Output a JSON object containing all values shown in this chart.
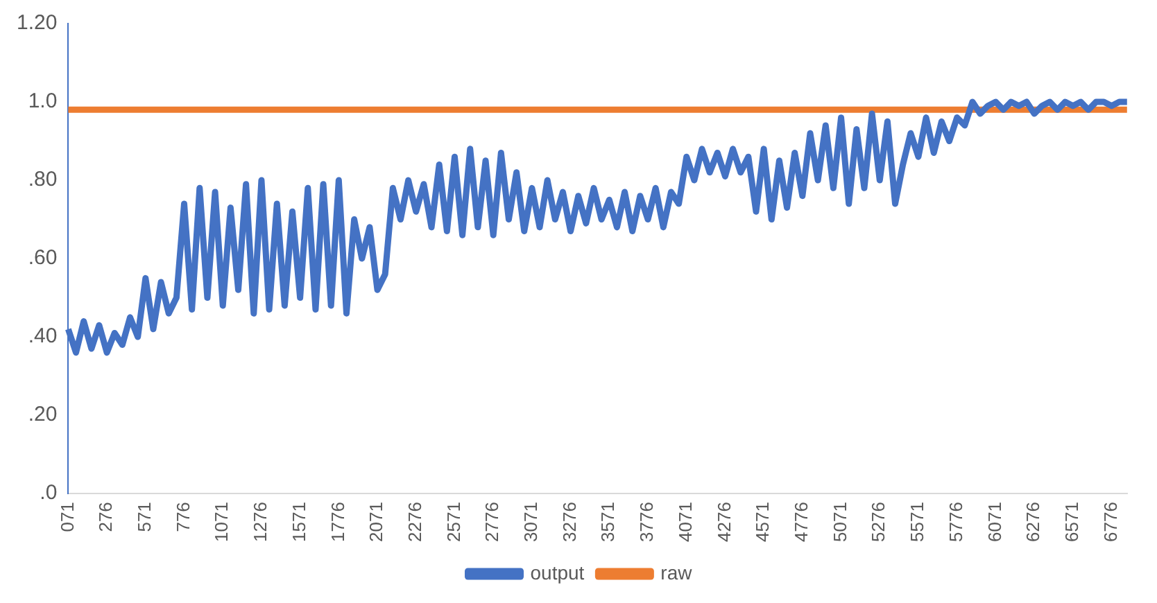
{
  "chart_data": {
    "type": "line",
    "categories": [
      "071",
      null,
      null,
      null,
      null,
      "276",
      null,
      null,
      null,
      null,
      "571",
      null,
      null,
      null,
      null,
      "776",
      null,
      null,
      null,
      null,
      "1071",
      null,
      null,
      null,
      null,
      "1276",
      null,
      null,
      null,
      null,
      "1571",
      null,
      null,
      null,
      null,
      "1776",
      null,
      null,
      null,
      null,
      "2071",
      null,
      null,
      null,
      null,
      "2276",
      null,
      null,
      null,
      null,
      "2571",
      null,
      null,
      null,
      null,
      "2776",
      null,
      null,
      null,
      null,
      "3071",
      null,
      null,
      null,
      null,
      "3276",
      null,
      null,
      null,
      null,
      "3571",
      null,
      null,
      null,
      null,
      "3776",
      null,
      null,
      null,
      null,
      "4071",
      null,
      null,
      null,
      null,
      "4276",
      null,
      null,
      null,
      null,
      "4571",
      null,
      null,
      null,
      null,
      "4776",
      null,
      null,
      null,
      null,
      "5071",
      null,
      null,
      null,
      null,
      "5276",
      null,
      null,
      null,
      null,
      "5571",
      null,
      null,
      null,
      null,
      "5776",
      null,
      null,
      null,
      null,
      "6071",
      null,
      null,
      null,
      null,
      "6276",
      null,
      null,
      null,
      null,
      "6571",
      null,
      null,
      null,
      null,
      "6776",
      null,
      null
    ],
    "series": [
      {
        "name": "output",
        "color": "#4472c4",
        "values": [
          0.42,
          0.36,
          0.44,
          0.37,
          0.43,
          0.36,
          0.41,
          0.38,
          0.45,
          0.4,
          0.55,
          0.42,
          0.54,
          0.46,
          0.5,
          0.74,
          0.47,
          0.78,
          0.5,
          0.77,
          0.48,
          0.73,
          0.52,
          0.79,
          0.46,
          0.8,
          0.47,
          0.74,
          0.48,
          0.72,
          0.5,
          0.78,
          0.47,
          0.79,
          0.48,
          0.8,
          0.46,
          0.7,
          0.6,
          0.68,
          0.52,
          0.56,
          0.78,
          0.7,
          0.8,
          0.72,
          0.79,
          0.68,
          0.84,
          0.67,
          0.86,
          0.66,
          0.88,
          0.68,
          0.85,
          0.66,
          0.87,
          0.7,
          0.82,
          0.67,
          0.78,
          0.68,
          0.8,
          0.7,
          0.77,
          0.67,
          0.76,
          0.69,
          0.78,
          0.7,
          0.75,
          0.68,
          0.77,
          0.67,
          0.76,
          0.7,
          0.78,
          0.68,
          0.77,
          0.74,
          0.86,
          0.8,
          0.88,
          0.82,
          0.87,
          0.81,
          0.88,
          0.82,
          0.86,
          0.72,
          0.88,
          0.7,
          0.85,
          0.73,
          0.87,
          0.76,
          0.92,
          0.8,
          0.94,
          0.78,
          0.96,
          0.74,
          0.93,
          0.78,
          0.97,
          0.8,
          0.95,
          0.74,
          0.84,
          0.92,
          0.86,
          0.96,
          0.87,
          0.95,
          0.9,
          0.96,
          0.94,
          1.0,
          0.97,
          0.99,
          1.0,
          0.98,
          1.0,
          0.99,
          1.0,
          0.97,
          0.99,
          1.0,
          0.98,
          1.0,
          0.99,
          1.0,
          0.98,
          1.0,
          1.0,
          0.99,
          1.0,
          1.0
        ]
      },
      {
        "name": "raw",
        "color": "#ed7d31",
        "values": [
          0.98,
          0.98,
          0.98,
          0.98,
          0.98,
          0.98,
          0.98,
          0.98,
          0.98,
          0.98,
          0.98,
          0.98,
          0.98,
          0.98,
          0.98,
          0.98,
          0.98,
          0.98,
          0.98,
          0.98,
          0.98,
          0.98,
          0.98,
          0.98,
          0.98,
          0.98,
          0.98,
          0.98,
          0.98,
          0.98,
          0.98,
          0.98,
          0.98,
          0.98,
          0.98,
          0.98,
          0.98,
          0.98,
          0.98,
          0.98,
          0.98,
          0.98,
          0.98,
          0.98,
          0.98,
          0.98,
          0.98,
          0.98,
          0.98,
          0.98,
          0.98,
          0.98,
          0.98,
          0.98,
          0.98,
          0.98,
          0.98,
          0.98,
          0.98,
          0.98,
          0.98,
          0.98,
          0.98,
          0.98,
          0.98,
          0.98,
          0.98,
          0.98,
          0.98,
          0.98,
          0.98,
          0.98,
          0.98,
          0.98,
          0.98,
          0.98,
          0.98,
          0.98,
          0.98,
          0.98,
          0.98,
          0.98,
          0.98,
          0.98,
          0.98,
          0.98,
          0.98,
          0.98,
          0.98,
          0.98,
          0.98,
          0.98,
          0.98,
          0.98,
          0.98,
          0.98,
          0.98,
          0.98,
          0.98,
          0.98,
          0.98,
          0.98,
          0.98,
          0.98,
          0.98,
          0.98,
          0.98,
          0.98,
          0.98,
          0.98,
          0.98,
          0.98,
          0.98,
          0.98,
          0.98,
          0.98,
          0.98,
          0.98,
          0.98,
          0.98,
          0.98,
          0.98,
          0.98,
          0.98,
          0.98,
          0.98,
          0.98,
          0.98,
          0.98,
          0.98,
          0.98,
          0.98,
          0.98,
          0.98,
          0.98,
          0.98,
          0.98,
          0.98
        ]
      }
    ],
    "ylim": [
      0,
      1.2
    ],
    "yticks": [
      {
        "value": 0,
        "label": ".0"
      },
      {
        "value": 0.2,
        "label": ".20"
      },
      {
        "value": 0.4,
        "label": ".40"
      },
      {
        "value": 0.6,
        "label": ".60"
      },
      {
        "value": 0.8,
        "label": ".80"
      },
      {
        "value": 1.0,
        "label": "1.0"
      },
      {
        "value": 1.2,
        "label": "1.20"
      }
    ],
    "legend": "bottom",
    "marker": "none",
    "line_style": "solid"
  }
}
